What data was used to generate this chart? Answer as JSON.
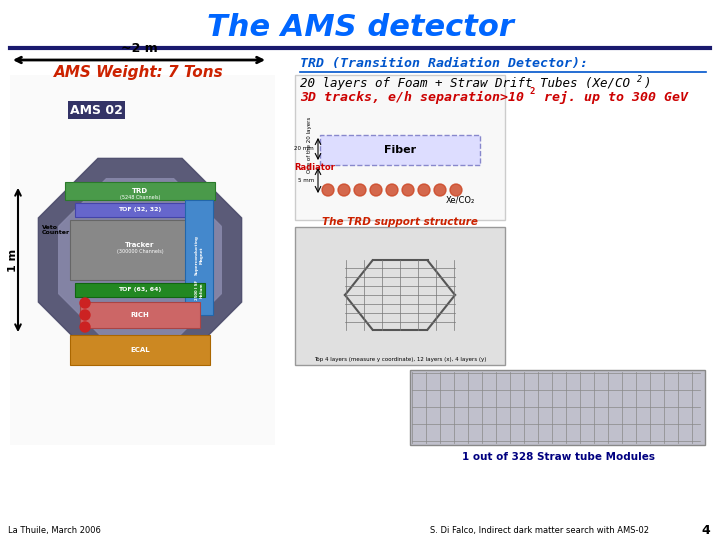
{
  "title": "The AMS detector",
  "title_color": "#0066ff",
  "title_fontsize": 22,
  "divider_color": "#1a1a6e",
  "bg_color": "#ffffff",
  "trd_header": "TRD (Transition Radiation Detector):",
  "trd_line1": "20 layers of Foam + Straw Drift Tubes (Xe/CO",
  "trd_line1_color": "#000000",
  "trd_line2_color": "#cc0000",
  "trd_header_color": "#0055cc",
  "arrow_label": "~2 m",
  "weight_text": "AMS Weight: 7 Tons",
  "weight_color": "#cc2200",
  "footer_left": "La Thuile, March 2006",
  "footer_right": "S. Di Falco, Indirect dark matter search with AMS-02",
  "footer_page": "4",
  "straw_label": "1 out of 328 Straw tube Modules",
  "straw_label_color": "#000080",
  "trd_support": "The TRD support structure",
  "trd_support_color": "#cc2200",
  "layers_note": "Top 4 layers (measure y coordinate), 12 layers (x), 4 layers (y)",
  "ams_label": "AMS 02",
  "one_m_label": "1 m"
}
